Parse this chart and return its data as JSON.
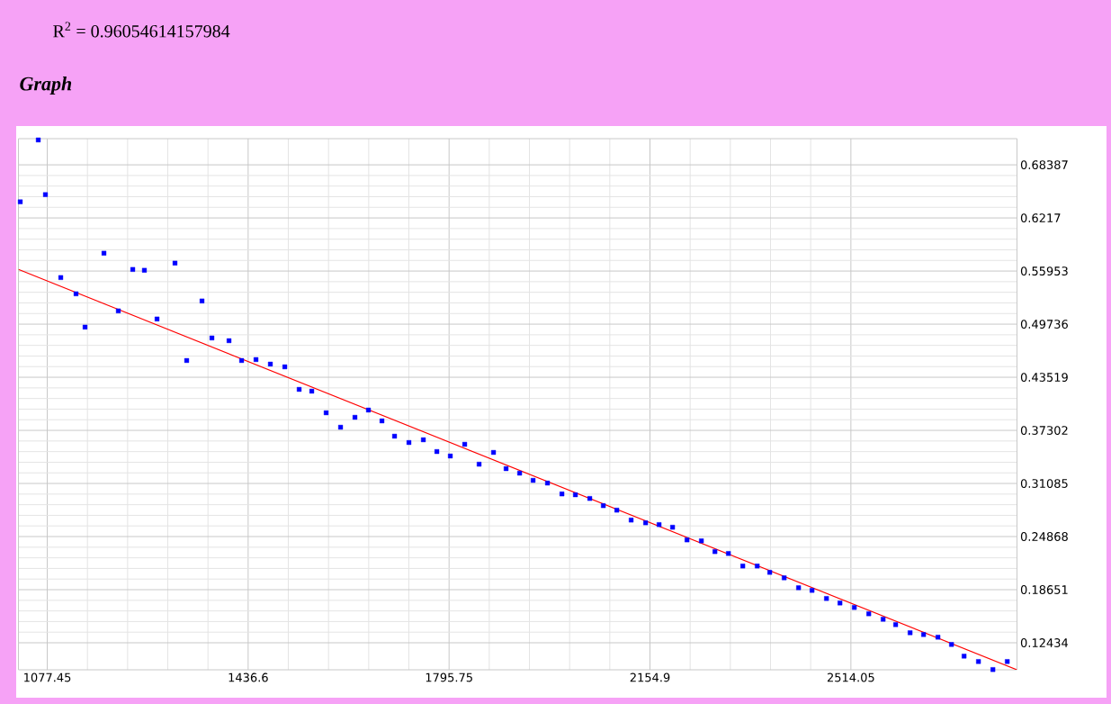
{
  "chart_data": {
    "type": "scatter",
    "title": "Graph",
    "annotations": [
      "R$^{2}$ = 0.96054614157984"
    ],
    "xlim": [
      1026,
      2811
    ],
    "ylim": [
      0.0927,
      0.7145
    ],
    "xticks": [
      1077.45,
      1436.6,
      1795.75,
      2154.9,
      2514.05
    ],
    "yticks": [
      0.12434,
      0.18651,
      0.24868,
      0.31085,
      0.37302,
      0.43519,
      0.49736,
      0.55953,
      0.6217,
      0.68387
    ],
    "grid": true,
    "series": [
      {
        "color": "#0000ff",
        "marker": "square",
        "x": [
          1029.2,
          1061.4,
          1074.2,
          1101.6,
          1128.9,
          1145.0,
          1178.8,
          1204.5,
          1230.3,
          1251.1,
          1273.7,
          1305.8,
          1326.7,
          1354.1,
          1371.8,
          1402.4,
          1424.9,
          1450.6,
          1476.3,
          1502.1,
          1527.8,
          1550.3,
          1576.0,
          1601.8,
          1627.5,
          1651.6,
          1675.8,
          1698.3,
          1724.0,
          1749.8,
          1773.9,
          1798.0,
          1823.7,
          1849.5,
          1875.2,
          1897.7,
          1921.9,
          1946.0,
          1971.7,
          1997.5,
          2021.6,
          2047.3,
          2071.5,
          2095.6,
          2121.3,
          2147.1,
          2171.2,
          2195.3,
          2221.1,
          2246.8,
          2271.0,
          2295.1,
          2320.8,
          2346.6,
          2369.0,
          2394.8,
          2420.5,
          2444.6,
          2470.4,
          2494.5,
          2520.2,
          2546.0,
          2571.7,
          2594.1,
          2619.9,
          2644.0,
          2669.7,
          2693.9,
          2716.4,
          2742.1,
          2767.9,
          2793.6
        ],
        "values": [
          0.6406,
          0.713,
          0.649,
          0.5519,
          0.5329,
          0.4939,
          0.5804,
          0.5129,
          0.5614,
          0.5604,
          0.5034,
          0.5688,
          0.4548,
          0.5245,
          0.4812,
          0.478,
          0.4548,
          0.4559,
          0.4506,
          0.4474,
          0.421,
          0.4189,
          0.3936,
          0.3767,
          0.3883,
          0.3968,
          0.3841,
          0.3662,
          0.3588,
          0.362,
          0.3482,
          0.343,
          0.3567,
          0.3334,
          0.3472,
          0.3282,
          0.3229,
          0.3145,
          0.3113,
          0.2986,
          0.2976,
          0.2933,
          0.2849,
          0.2796,
          0.268,
          0.2648,
          0.2627,
          0.2596,
          0.2448,
          0.2437,
          0.2311,
          0.2289,
          0.2142,
          0.2142,
          0.2068,
          0.2004,
          0.1888,
          0.1857,
          0.1762,
          0.1709,
          0.1657,
          0.1583,
          0.1519,
          0.1456,
          0.1361,
          0.134,
          0.1309,
          0.1224,
          0.1087,
          0.1024,
          0.093,
          0.1024
        ]
      },
      {
        "type": "line",
        "color": "#ff0000",
        "marker": "none",
        "x": [
          1026,
          2811
        ],
        "values": [
          0.5614,
          0.0927
        ]
      }
    ]
  }
}
